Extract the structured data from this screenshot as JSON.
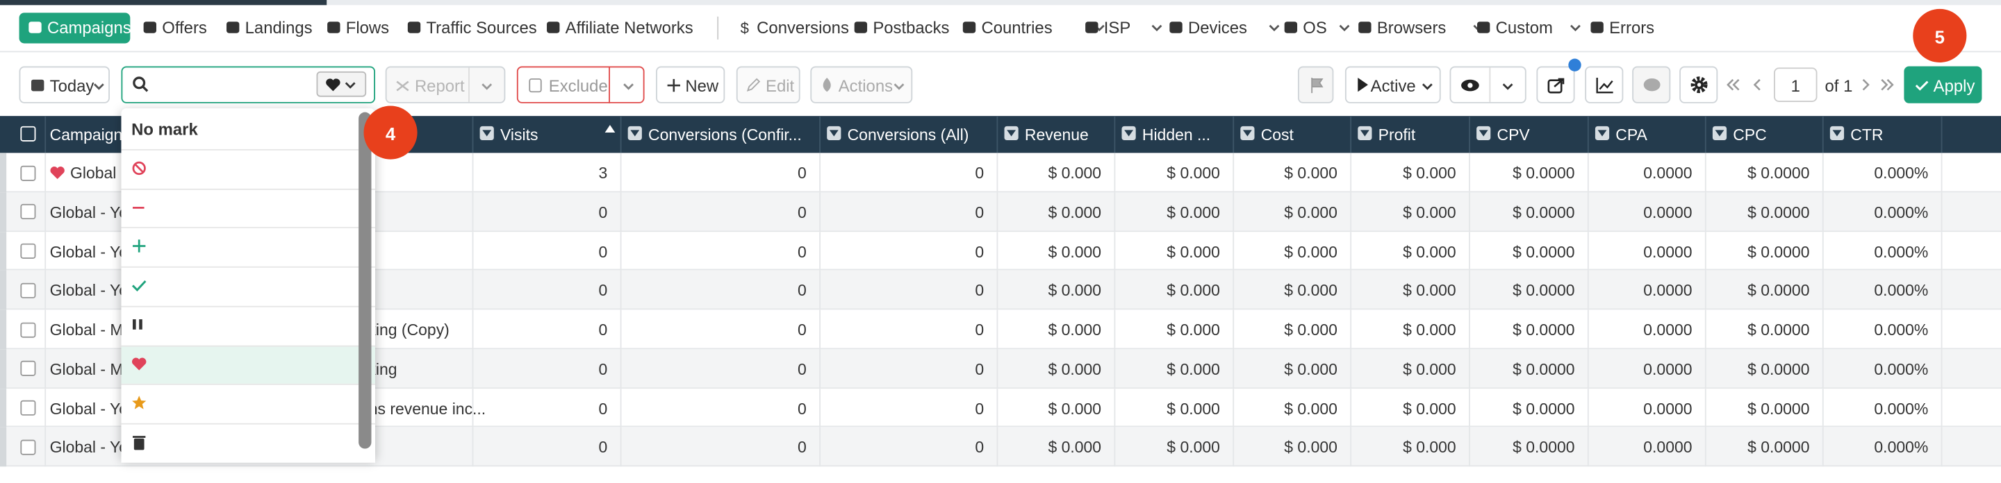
{
  "nav": {
    "items": [
      "Campaigns",
      "Offers",
      "Landings",
      "Flows",
      "Traffic Sources",
      "Affiliate Networks",
      "Conversions",
      "Postbacks",
      "Countries",
      "ISP",
      "Devices",
      "OS",
      "Browsers",
      "Custom",
      "Errors"
    ]
  },
  "toolbar": {
    "date": "Today",
    "report": "Report",
    "exclude": "Exclude",
    "new": "New",
    "edit": "Edit",
    "actions": "Actions",
    "status": "Active",
    "page": "1",
    "page_of": "of 1",
    "apply": "Apply"
  },
  "dropdown": {
    "header": "No mark"
  },
  "badges": [
    "4",
    "5"
  ],
  "table": {
    "headers": [
      "Campaign",
      "Visits",
      "Conversions (Confir...",
      "Conversions (All)",
      "Revenue",
      "Hidden ...",
      "Cost",
      "Profit",
      "CPV",
      "CPA",
      "CPC",
      "CTR"
    ],
    "rows": [
      {
        "campaign": "Global -",
        "cells": [
          3,
          0,
          0,
          "$ 0.000",
          "$ 0.000",
          "$ 0.000",
          "$ 0.000",
          "$ 0.0000",
          "0.0000",
          "$ 0.0000",
          "0.000%"
        ]
      },
      {
        "campaign": "Global - Yo",
        "cells": [
          0,
          0,
          0,
          "$ 0.000",
          "$ 0.000",
          "$ 0.000",
          "$ 0.000",
          "$ 0.0000",
          "0.0000",
          "$ 0.0000",
          "0.000%"
        ]
      },
      {
        "campaign": "Global - Yo",
        "cells": [
          0,
          0,
          0,
          "$ 0.000",
          "$ 0.000",
          "$ 0.000",
          "$ 0.000",
          "$ 0.0000",
          "0.0000",
          "$ 0.0000",
          "0.000%"
        ]
      },
      {
        "campaign": "Global - Yo",
        "cells": [
          0,
          0,
          0,
          "$ 0.000",
          "$ 0.000",
          "$ 0.000",
          "$ 0.000",
          "$ 0.0000",
          "0.0000",
          "$ 0.0000",
          "0.000%"
        ]
      },
      {
        "campaign": "Global - M",
        "campaign_tail": "sking (Copy)",
        "cells": [
          0,
          0,
          0,
          "$ 0.000",
          "$ 0.000",
          "$ 0.000",
          "$ 0.000",
          "$ 0.0000",
          "0.0000",
          "$ 0.0000",
          "0.000%"
        ]
      },
      {
        "campaign": "Global - M",
        "campaign_tail": "sking",
        "cells": [
          0,
          0,
          0,
          "$ 0.000",
          "$ 0.000",
          "$ 0.000",
          "$ 0.000",
          "$ 0.0000",
          "0.0000",
          "$ 0.0000",
          "0.000%"
        ]
      },
      {
        "campaign": "Global - Yo",
        "campaign_tail": "ons revenue inc...",
        "cells": [
          0,
          0,
          0,
          "$ 0.000",
          "$ 0.000",
          "$ 0.000",
          "$ 0.000",
          "$ 0.0000",
          "0.0000",
          "$ 0.0000",
          "0.000%"
        ]
      },
      {
        "campaign": "Global - Yo",
        "cells": [
          0,
          0,
          0,
          "$ 0.000",
          "$ 0.000",
          "$ 0.000",
          "$ 0.000",
          "$ 0.0000",
          "0.0000",
          "$ 0.0000",
          "0.000%"
        ]
      }
    ]
  }
}
